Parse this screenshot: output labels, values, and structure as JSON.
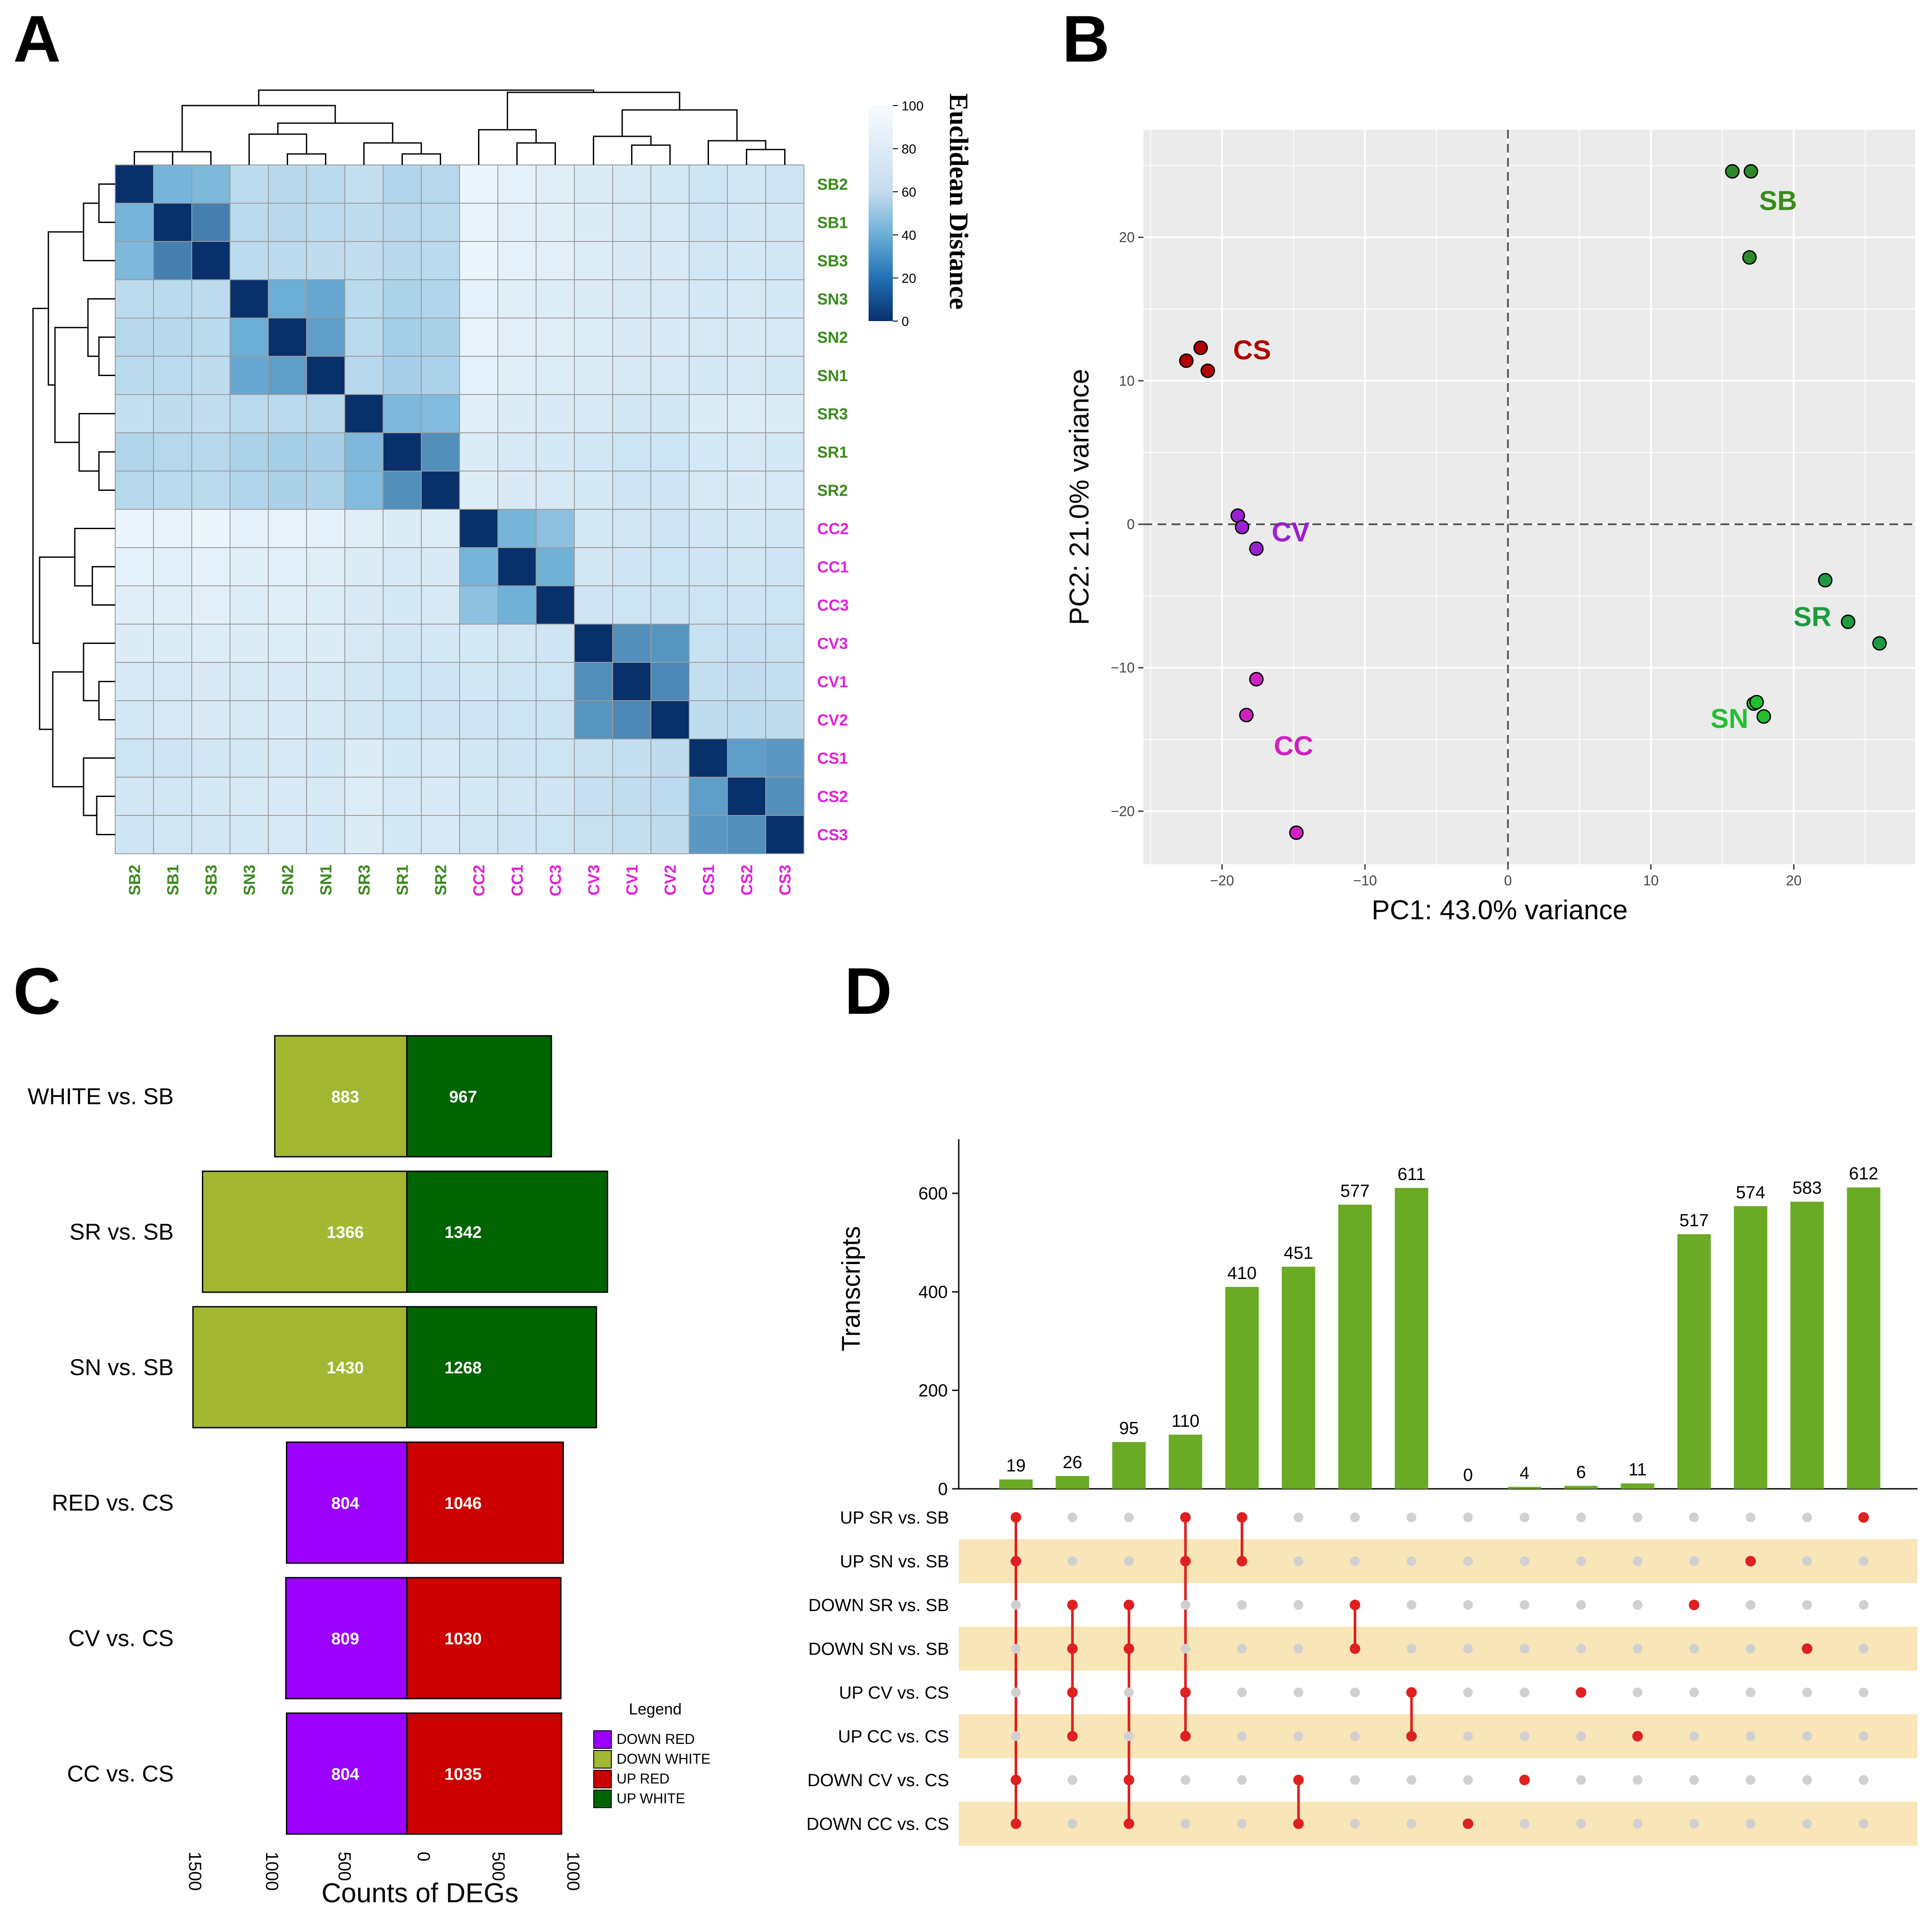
{
  "panel_labels": {
    "a": "A",
    "b": "B",
    "c": "C",
    "d": "D"
  },
  "chart_data": [
    {
      "panel": "A",
      "type": "heatmap",
      "samples": [
        "SB2",
        "SB1",
        "SB3",
        "SN3",
        "SN2",
        "SN1",
        "SR3",
        "SR1",
        "SR2",
        "CC2",
        "CC1",
        "CC3",
        "CV3",
        "CV1",
        "CV2",
        "CS1",
        "CS2",
        "CS3"
      ],
      "sample_colors": {
        "S": "#3a8a1c",
        "C": "#e020d8"
      },
      "legend_title": "Euclidean Distance",
      "legend_ticks": [
        0,
        20,
        40,
        60,
        80,
        100
      ],
      "value_range": [
        0,
        100
      ],
      "colors": {
        "low": "#08306b",
        "mid": "#6baed6",
        "high": "#f7fbff"
      },
      "values": [
        [
          0,
          45,
          48,
          75,
          72,
          74,
          78,
          70,
          72,
          95,
          92,
          90,
          88,
          86,
          85,
          82,
          84,
          83
        ],
        [
          45,
          0,
          25,
          74,
          73,
          75,
          76,
          72,
          74,
          94,
          91,
          90,
          88,
          86,
          86,
          83,
          84,
          84
        ],
        [
          48,
          25,
          0,
          75,
          74,
          76,
          77,
          73,
          74,
          95,
          92,
          91,
          89,
          87,
          87,
          84,
          85,
          84
        ],
        [
          75,
          74,
          75,
          0,
          40,
          38,
          74,
          68,
          70,
          92,
          90,
          89,
          88,
          86,
          86,
          85,
          86,
          85
        ],
        [
          72,
          73,
          74,
          40,
          0,
          35,
          74,
          65,
          67,
          93,
          91,
          90,
          89,
          87,
          87,
          86,
          87,
          86
        ],
        [
          74,
          75,
          76,
          38,
          35,
          0,
          73,
          66,
          68,
          92,
          90,
          89,
          88,
          86,
          86,
          85,
          86,
          85
        ],
        [
          78,
          76,
          77,
          74,
          74,
          73,
          0,
          48,
          50,
          90,
          88,
          87,
          86,
          84,
          84,
          88,
          89,
          88
        ],
        [
          70,
          72,
          73,
          68,
          65,
          66,
          48,
          0,
          30,
          88,
          86,
          85,
          84,
          82,
          82,
          85,
          86,
          85
        ],
        [
          72,
          74,
          74,
          70,
          67,
          68,
          50,
          30,
          0,
          89,
          87,
          86,
          85,
          83,
          83,
          86,
          87,
          86
        ],
        [
          95,
          94,
          95,
          92,
          93,
          92,
          90,
          88,
          89,
          0,
          45,
          55,
          85,
          84,
          83,
          84,
          85,
          84
        ],
        [
          92,
          91,
          92,
          90,
          91,
          90,
          88,
          86,
          87,
          45,
          0,
          42,
          84,
          83,
          82,
          83,
          84,
          83
        ],
        [
          90,
          90,
          91,
          89,
          90,
          89,
          87,
          85,
          86,
          55,
          42,
          0,
          83,
          82,
          81,
          82,
          83,
          82
        ],
        [
          88,
          88,
          89,
          88,
          89,
          88,
          86,
          84,
          85,
          85,
          84,
          83,
          0,
          30,
          32,
          80,
          79,
          80
        ],
        [
          86,
          86,
          87,
          86,
          87,
          86,
          84,
          82,
          83,
          84,
          83,
          82,
          30,
          0,
          28,
          78,
          77,
          78
        ],
        [
          85,
          86,
          87,
          86,
          87,
          86,
          84,
          82,
          83,
          83,
          82,
          81,
          32,
          28,
          0,
          76,
          75,
          76
        ],
        [
          82,
          83,
          84,
          85,
          86,
          85,
          88,
          85,
          86,
          84,
          83,
          82,
          80,
          78,
          76,
          0,
          35,
          33
        ],
        [
          84,
          84,
          85,
          86,
          87,
          86,
          89,
          86,
          87,
          85,
          84,
          83,
          79,
          77,
          75,
          35,
          0,
          30
        ],
        [
          83,
          84,
          84,
          85,
          86,
          85,
          88,
          85,
          86,
          84,
          83,
          82,
          80,
          78,
          76,
          33,
          30,
          0
        ]
      ]
    },
    {
      "panel": "B",
      "type": "scatter",
      "xlabel": "PC1: 43.0% variance",
      "ylabel": "PC2: 21.0% variance",
      "xlim": [
        -25.5,
        28.5
      ],
      "ylim": [
        -23.7,
        27.5
      ],
      "xticks": [
        -20,
        -10,
        0,
        10,
        20
      ],
      "yticks": [
        -20,
        -10,
        0,
        10,
        20
      ],
      "series": [
        {
          "name": "SB",
          "color": "#2a8a2a",
          "label_color": "#3a8a1c",
          "label_at": [
            18.9,
            21.9
          ],
          "points": [
            [
              15.7,
              24.6
            ],
            [
              17.0,
              24.6
            ],
            [
              16.9,
              18.6
            ]
          ]
        },
        {
          "name": "CS",
          "color": "#b00000",
          "label_color": "#b00000",
          "label_at": [
            -17.9,
            11.5
          ],
          "points": [
            [
              -21.5,
              12.3
            ],
            [
              -22.5,
              11.4
            ],
            [
              -21.0,
              10.7
            ]
          ]
        },
        {
          "name": "CV",
          "color": "#9a20d0",
          "label_color": "#9a20d0",
          "label_at": [
            -15.2,
            -1.2
          ],
          "points": [
            [
              -18.9,
              0.6
            ],
            [
              -18.6,
              -0.2
            ],
            [
              -17.6,
              -1.7
            ]
          ]
        },
        {
          "name": "CC",
          "color": "#d020c0",
          "label_color": "#d020c0",
          "label_at": [
            -15.0,
            -16.1
          ],
          "points": [
            [
              -17.6,
              -10.8
            ],
            [
              -18.3,
              -13.3
            ],
            [
              -14.8,
              -21.5
            ]
          ]
        },
        {
          "name": "SR",
          "color": "#1e9a40",
          "label_color": "#1e9a40",
          "label_at": [
            21.3,
            -7.1
          ],
          "points": [
            [
              22.2,
              -3.9
            ],
            [
              23.8,
              -6.8
            ],
            [
              26.0,
              -8.3
            ]
          ]
        },
        {
          "name": "SN",
          "color": "#22c030",
          "label_color": "#22c030",
          "label_at": [
            15.5,
            -14.2
          ],
          "points": [
            [
              17.2,
              -12.5
            ],
            [
              17.4,
              -12.4
            ],
            [
              17.9,
              -13.4
            ]
          ]
        }
      ]
    },
    {
      "panel": "C",
      "type": "bar",
      "orientation": "horizontal-diverging",
      "xlabel": "Counts of DEGs",
      "xticks_left": [
        1500,
        1000,
        500
      ],
      "xticks_right": [
        0,
        500,
        1000
      ],
      "categories": [
        "WHITE vs. SB",
        "SR vs. SB",
        "SN vs. SB",
        "RED vs. CS",
        "CV vs. CS",
        "CC vs. CS"
      ],
      "down_values": [
        883,
        1366,
        1430,
        804,
        809,
        804
      ],
      "up_values": [
        967,
        1342,
        1268,
        1046,
        1030,
        1035
      ],
      "colors": {
        "down_red": "#9b00ff",
        "down_white": "#a3b733",
        "up_red": "#cc0000",
        "up_white": "#006400"
      },
      "legend": {
        "title": "Legend",
        "items": [
          {
            "label": "DOWN RED",
            "color": "#9b00ff"
          },
          {
            "label": "DOWN WHITE",
            "color": "#a3b733"
          },
          {
            "label": "UP RED",
            "color": "#cc0000"
          },
          {
            "label": "UP WHITE",
            "color": "#006400"
          }
        ]
      }
    },
    {
      "panel": "D",
      "type": "bar",
      "subtype": "upset",
      "ylabel": "Transcripts",
      "yticks": [
        0,
        200,
        400,
        600
      ],
      "ylim": [
        0,
        710
      ],
      "sets": [
        "UP SR vs. SB",
        "UP SN vs. SB",
        "DOWN SR vs. SB",
        "DOWN SN vs. SB",
        "UP CV vs. CS",
        "UP CC vs. CS",
        "DOWN CV vs. CS",
        "DOWN CC vs. CS"
      ],
      "values": [
        19,
        26,
        95,
        110,
        410,
        451,
        577,
        611,
        0,
        4,
        6,
        11,
        517,
        574,
        583,
        612
      ],
      "memberships": [
        [
          0,
          1,
          6,
          7
        ],
        [
          2,
          3,
          4,
          5
        ],
        [
          2,
          3,
          6,
          7
        ],
        [
          0,
          1,
          4,
          5
        ],
        [
          0,
          1
        ],
        [
          6,
          7
        ],
        [
          2,
          3
        ],
        [
          4,
          5
        ],
        [
          7
        ],
        [
          6
        ],
        [
          4
        ],
        [
          5
        ],
        [
          2
        ],
        [
          1
        ],
        [
          3
        ],
        [
          0
        ]
      ],
      "bar_color": "#6aaa24",
      "dot_active_color": "#e02020",
      "dot_inactive_color": "#d0d0d0",
      "stripe_color": "#f8e6b8"
    }
  ]
}
